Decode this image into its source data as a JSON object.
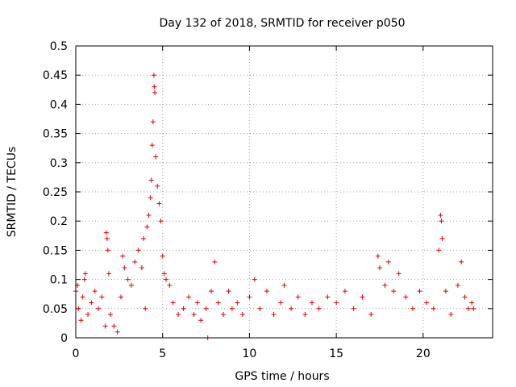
{
  "chart_data": {
    "type": "scatter",
    "title": "Day 132 of 2018, SRMTID for receiver p050",
    "xlabel": "GPS time / hours",
    "ylabel": "SRMTID / TECUs",
    "xlim": [
      0,
      24
    ],
    "ylim": [
      0,
      0.5
    ],
    "xticks": [
      0,
      5,
      10,
      15,
      20
    ],
    "yticks": [
      0,
      0.05,
      0.1,
      0.15,
      0.2,
      0.25,
      0.3,
      0.35,
      0.4,
      0.45,
      0.5
    ],
    "xtick_labels": [
      "0",
      "5",
      "10",
      "15",
      "20"
    ],
    "ytick_labels": [
      "0",
      "0.05",
      "0.1",
      "0.15",
      "0.2",
      "0.25",
      "0.3",
      "0.35",
      "0.4",
      "0.45",
      "0.5"
    ],
    "grid": true,
    "marker": "+",
    "color": "#e00000",
    "time_span_hours": [
      0,
      22.9
    ],
    "series": [
      {
        "name": "SRMTID",
        "points": [
          [
            0.0,
            0.08
          ],
          [
            0.1,
            0.09
          ],
          [
            0.15,
            0.05
          ],
          [
            0.3,
            0.03
          ],
          [
            0.4,
            0.07
          ],
          [
            0.5,
            0.1
          ],
          [
            0.55,
            0.11
          ],
          [
            0.7,
            0.04
          ],
          [
            0.9,
            0.06
          ],
          [
            1.1,
            0.08
          ],
          [
            1.3,
            0.05
          ],
          [
            1.5,
            0.07
          ],
          [
            1.7,
            0.02
          ],
          [
            1.75,
            0.18
          ],
          [
            1.8,
            0.17
          ],
          [
            1.85,
            0.15
          ],
          [
            1.9,
            0.11
          ],
          [
            2.0,
            0.04
          ],
          [
            2.2,
            0.02
          ],
          [
            2.4,
            0.01
          ],
          [
            2.6,
            0.07
          ],
          [
            2.7,
            0.14
          ],
          [
            2.8,
            0.12
          ],
          [
            3.0,
            0.1
          ],
          [
            3.2,
            0.09
          ],
          [
            3.4,
            0.13
          ],
          [
            3.6,
            0.15
          ],
          [
            3.8,
            0.12
          ],
          [
            3.9,
            0.17
          ],
          [
            4.0,
            0.05
          ],
          [
            4.1,
            0.19
          ],
          [
            4.2,
            0.21
          ],
          [
            4.3,
            0.24
          ],
          [
            4.35,
            0.27
          ],
          [
            4.4,
            0.33
          ],
          [
            4.45,
            0.37
          ],
          [
            4.5,
            0.45
          ],
          [
            4.52,
            0.43
          ],
          [
            4.55,
            0.42
          ],
          [
            4.6,
            0.31
          ],
          [
            4.7,
            0.26
          ],
          [
            4.8,
            0.23
          ],
          [
            4.9,
            0.2
          ],
          [
            5.0,
            0.14
          ],
          [
            5.1,
            0.11
          ],
          [
            5.2,
            0.1
          ],
          [
            5.4,
            0.09
          ],
          [
            5.6,
            0.06
          ],
          [
            5.9,
            0.04
          ],
          [
            6.2,
            0.05
          ],
          [
            6.5,
            0.07
          ],
          [
            6.8,
            0.04
          ],
          [
            7.0,
            0.06
          ],
          [
            7.2,
            0.03
          ],
          [
            7.5,
            0.05
          ],
          [
            7.6,
            0.0
          ],
          [
            7.8,
            0.08
          ],
          [
            8.0,
            0.13
          ],
          [
            8.2,
            0.06
          ],
          [
            8.5,
            0.04
          ],
          [
            8.8,
            0.08
          ],
          [
            9.0,
            0.05
          ],
          [
            9.3,
            0.06
          ],
          [
            9.6,
            0.04
          ],
          [
            10.0,
            0.07
          ],
          [
            10.3,
            0.1
          ],
          [
            10.6,
            0.05
          ],
          [
            11.0,
            0.08
          ],
          [
            11.4,
            0.04
          ],
          [
            11.8,
            0.06
          ],
          [
            12.0,
            0.09
          ],
          [
            12.4,
            0.05
          ],
          [
            12.8,
            0.07
          ],
          [
            13.2,
            0.04
          ],
          [
            13.6,
            0.06
          ],
          [
            14.0,
            0.05
          ],
          [
            14.5,
            0.07
          ],
          [
            15.0,
            0.06
          ],
          [
            15.5,
            0.08
          ],
          [
            16.0,
            0.05
          ],
          [
            16.5,
            0.07
          ],
          [
            17.0,
            0.04
          ],
          [
            17.4,
            0.14
          ],
          [
            17.5,
            0.12
          ],
          [
            17.8,
            0.09
          ],
          [
            18.0,
            0.13
          ],
          [
            18.3,
            0.08
          ],
          [
            18.6,
            0.11
          ],
          [
            19.0,
            0.07
          ],
          [
            19.4,
            0.05
          ],
          [
            19.8,
            0.08
          ],
          [
            20.2,
            0.06
          ],
          [
            20.6,
            0.05
          ],
          [
            20.9,
            0.15
          ],
          [
            21.0,
            0.21
          ],
          [
            21.05,
            0.2
          ],
          [
            21.1,
            0.17
          ],
          [
            21.3,
            0.08
          ],
          [
            21.6,
            0.04
          ],
          [
            22.0,
            0.09
          ],
          [
            22.2,
            0.13
          ],
          [
            22.4,
            0.07
          ],
          [
            22.6,
            0.05
          ],
          [
            22.8,
            0.06
          ],
          [
            22.9,
            0.05
          ]
        ]
      }
    ]
  }
}
